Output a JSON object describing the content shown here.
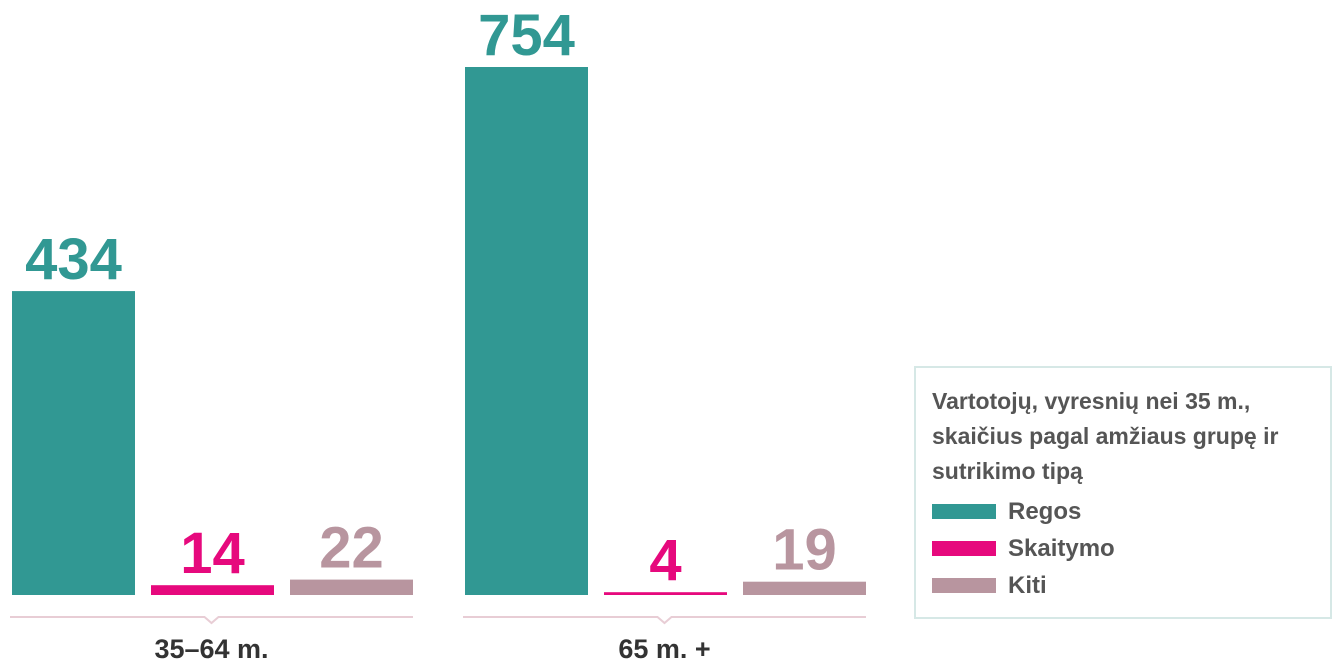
{
  "chart_data": {
    "type": "bar",
    "title": "Vartotojų, vyresnių nei 35 m., skaičius pagal amžiaus grupę ir sutrikimo tipą",
    "categories": [
      "35–64 m.",
      "65 m. +"
    ],
    "series": [
      {
        "name": "Regos",
        "color": "#319893",
        "values": [
          434,
          754
        ]
      },
      {
        "name": "Skaitymo",
        "color": "#e6097d",
        "values": [
          14,
          4
        ]
      },
      {
        "name": "Kiti",
        "color": "#b8959f",
        "values": [
          22,
          19
        ]
      }
    ]
  }
}
